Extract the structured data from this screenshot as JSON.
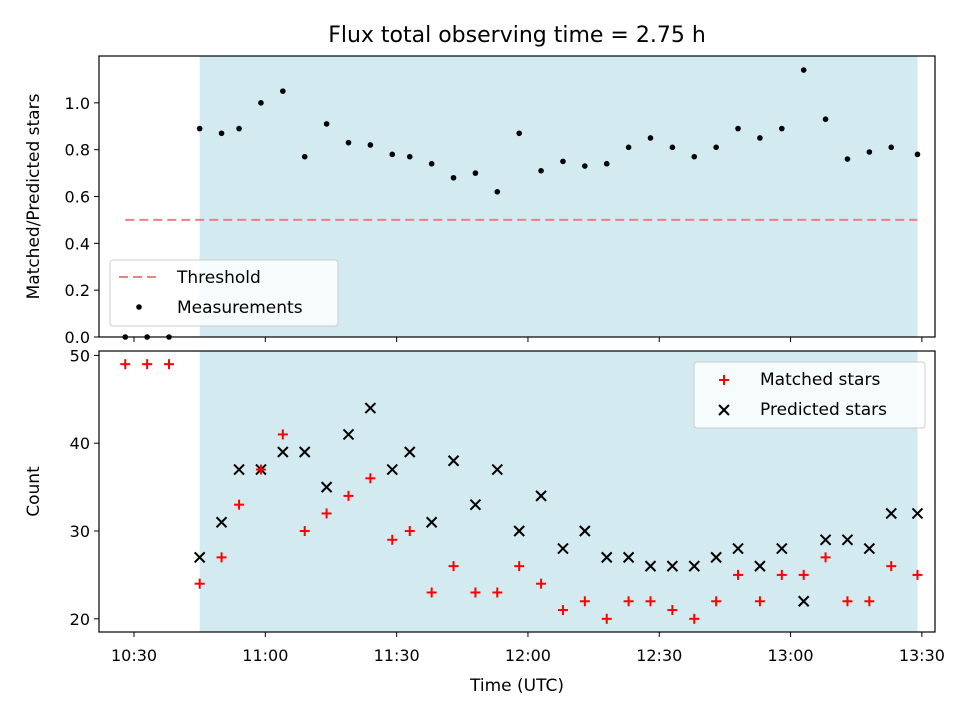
{
  "title": "Flux total observing time = 2.75 h",
  "colors": {
    "shade": "#d3eaf0",
    "threshold": "#f08080",
    "measurement": "#000000",
    "matched": "#ff0000",
    "predicted": "#000000"
  },
  "chart_data": [
    {
      "type": "scatter",
      "ylabel": "Matched/Predicted stars",
      "xlim": [
        "10:22",
        "13:33"
      ],
      "ylim": [
        0,
        1.2
      ],
      "yticks": [
        0.0,
        0.2,
        0.4,
        0.6,
        0.8,
        1.0
      ],
      "ytick_labels": [
        "0.0",
        "0.2",
        "0.4",
        "0.6",
        "0.8",
        "1.0"
      ],
      "shaded_span": [
        "10:45",
        "13:29"
      ],
      "legend_position": "lower-left",
      "threshold": {
        "name": "Threshold",
        "value": 0.5,
        "x_range": [
          "10:28",
          "13:29"
        ]
      },
      "series": [
        {
          "name": "Measurements",
          "x": [
            "10:28",
            "10:33",
            "10:38",
            "10:45",
            "10:50",
            "10:54",
            "10:59",
            "11:04",
            "11:09",
            "11:14",
            "11:19",
            "11:24",
            "11:29",
            "11:33",
            "11:38",
            "11:43",
            "11:48",
            "11:53",
            "11:58",
            "12:03",
            "12:08",
            "12:13",
            "12:18",
            "12:23",
            "12:28",
            "12:33",
            "12:38",
            "12:43",
            "12:48",
            "12:53",
            "12:58",
            "13:03",
            "13:08",
            "13:13",
            "13:18",
            "13:23",
            "13:29"
          ],
          "values": [
            0.0,
            0.0,
            0.0,
            0.89,
            0.87,
            0.89,
            1.0,
            1.05,
            0.77,
            0.91,
            0.83,
            0.82,
            0.78,
            0.77,
            0.74,
            0.68,
            0.7,
            0.62,
            0.87,
            0.71,
            0.75,
            0.73,
            0.74,
            0.81,
            0.85,
            0.81,
            0.77,
            0.81,
            0.89,
            0.85,
            0.89,
            1.14,
            0.93,
            0.76,
            0.79,
            0.81,
            0.78
          ]
        }
      ]
    },
    {
      "type": "scatter",
      "title": "",
      "xlabel": "Time (UTC)",
      "ylabel": "Count",
      "xlim": [
        "10:22",
        "13:33"
      ],
      "ylim": [
        18.5,
        50.5
      ],
      "xticks": [
        "10:30",
        "11:00",
        "11:30",
        "12:00",
        "12:30",
        "13:00",
        "13:30"
      ],
      "xtick_labels": [
        "10:30",
        "11:00",
        "11:30",
        "12:00",
        "12:30",
        "13:00",
        "13:30"
      ],
      "yticks": [
        20,
        30,
        40,
        50
      ],
      "ytick_labels": [
        "20",
        "30",
        "40",
        "50"
      ],
      "shaded_span": [
        "10:45",
        "13:29"
      ],
      "legend_position": "upper-right",
      "x": [
        "10:28",
        "10:33",
        "10:38",
        "10:45",
        "10:50",
        "10:54",
        "10:59",
        "11:04",
        "11:09",
        "11:14",
        "11:19",
        "11:24",
        "11:29",
        "11:33",
        "11:38",
        "11:43",
        "11:48",
        "11:53",
        "11:58",
        "12:03",
        "12:08",
        "12:13",
        "12:18",
        "12:23",
        "12:28",
        "12:33",
        "12:38",
        "12:43",
        "12:48",
        "12:53",
        "12:58",
        "13:03",
        "13:08",
        "13:13",
        "13:18",
        "13:23",
        "13:29"
      ],
      "series": [
        {
          "name": "Matched stars",
          "marker": "plus",
          "values": [
            49,
            49,
            49,
            24,
            27,
            33,
            37,
            41,
            30,
            32,
            34,
            36,
            29,
            30,
            23,
            26,
            23,
            23,
            26,
            24,
            21,
            22,
            20,
            22,
            22,
            21,
            20,
            22,
            25,
            22,
            25,
            25,
            27,
            22,
            22,
            26,
            25
          ]
        },
        {
          "name": "Predicted stars",
          "marker": "x",
          "values": [
            null,
            null,
            null,
            27,
            31,
            37,
            37,
            39,
            39,
            35,
            41,
            44,
            37,
            39,
            31,
            38,
            33,
            37,
            30,
            34,
            28,
            30,
            27,
            27,
            26,
            26,
            26,
            27,
            28,
            26,
            28,
            22,
            29,
            29,
            28,
            32,
            32
          ]
        }
      ]
    }
  ]
}
